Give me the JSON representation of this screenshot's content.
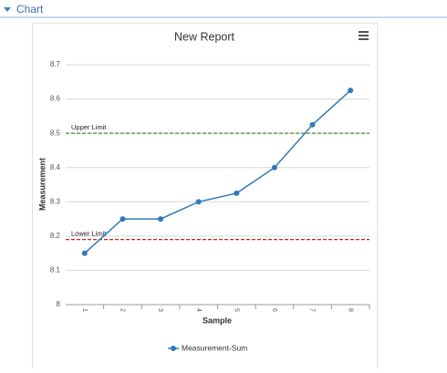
{
  "panel": {
    "title": "Chart"
  },
  "chart_data": {
    "type": "line",
    "title": "New Report",
    "x_label": "Sample",
    "y_label": "Measurement",
    "categories": [
      "1",
      "2",
      "3",
      "4",
      "5",
      "6",
      "7",
      "8"
    ],
    "series": [
      {
        "name": "Measurement-Sum",
        "color": "#2f7ab9",
        "values": [
          8.15,
          8.25,
          8.25,
          8.3,
          8.325,
          8.4,
          8.525,
          8.625
        ]
      }
    ],
    "ylim": [
      8,
      8.7
    ],
    "yticks": [
      8,
      8.1,
      8.2,
      8.3,
      8.4,
      8.5,
      8.6,
      8.7
    ],
    "grid": true,
    "reference_lines": [
      {
        "label": "Upper Limit",
        "value": 8.5,
        "color": "#3d8f2e"
      },
      {
        "label": "Lower Limit",
        "value": 8.19,
        "color": "#c0271d"
      }
    ],
    "legend": "bottom"
  }
}
